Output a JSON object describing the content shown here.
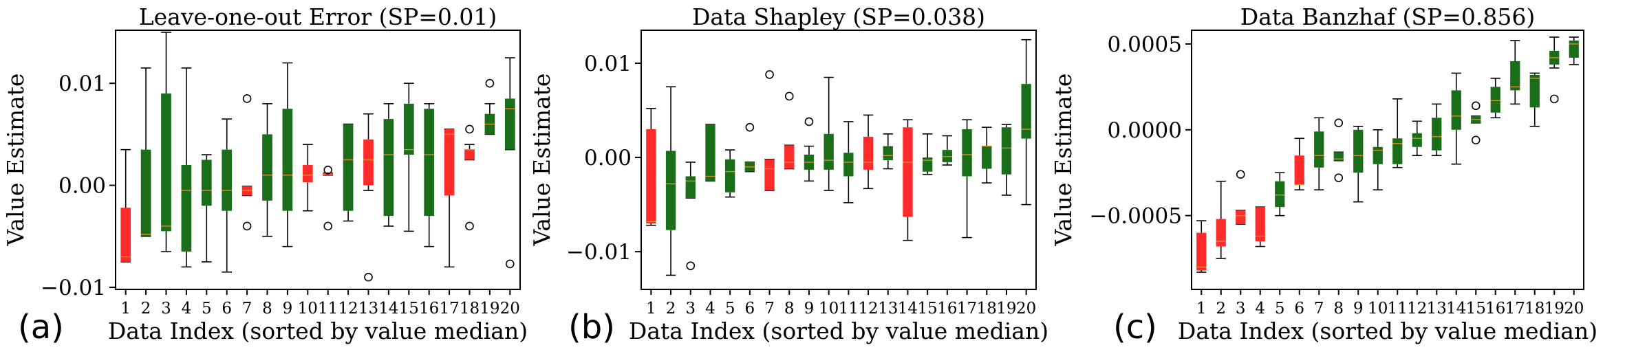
{
  "figure": {
    "panel_letters": [
      "(a)",
      "(b)",
      "(c)"
    ]
  },
  "colors": {
    "positive_box": "#1a6e1a",
    "negative_box": "#ff2a2a",
    "median_line": "#d98c2b",
    "whisker": "#000000",
    "outlier_edge": "#000000"
  },
  "chart_data": [
    {
      "type": "box",
      "title": "Leave-one-out Error (SP=0.01)",
      "xlabel": "Data Index (sorted by value median)",
      "ylabel": "Value Estimate",
      "categories": [
        "1",
        "2",
        "3",
        "4",
        "5",
        "6",
        "7",
        "8",
        "9",
        "10",
        "11",
        "12",
        "13",
        "14",
        "15",
        "16",
        "17",
        "18",
        "19",
        "20"
      ],
      "ylim": [
        -0.0102,
        0.0152
      ],
      "yticks": [
        -0.01,
        0.0,
        0.01
      ],
      "ytick_labels": [
        "−0.01",
        "0.00",
        "0.01"
      ],
      "grid": false,
      "boxes": [
        {
          "min": -0.0075,
          "q1": -0.0075,
          "median": -0.007,
          "q3": -0.0022,
          "max": 0.0035,
          "color": "red",
          "outliers": []
        },
        {
          "min": -0.005,
          "q1": -0.005,
          "median": -0.0048,
          "q3": 0.0035,
          "max": 0.0115,
          "color": "green",
          "outliers": []
        },
        {
          "min": -0.0065,
          "q1": -0.0045,
          "median": -0.004,
          "q3": 0.009,
          "max": 0.015,
          "color": "green",
          "outliers": []
        },
        {
          "min": -0.008,
          "q1": -0.0065,
          "median": -0.0005,
          "q3": 0.002,
          "max": 0.0115,
          "color": "green",
          "outliers": []
        },
        {
          "min": -0.0075,
          "q1": -0.002,
          "median": -0.0005,
          "q3": 0.0025,
          "max": 0.003,
          "color": "green",
          "outliers": []
        },
        {
          "min": -0.0085,
          "q1": -0.0025,
          "median": -0.0005,
          "q3": 0.0035,
          "max": 0.0065,
          "color": "green",
          "outliers": []
        },
        {
          "min": -0.001,
          "q1": -0.001,
          "median": -0.0005,
          "q3": -0.0001,
          "max": -0.0001,
          "color": "red",
          "outliers": [
            0.0085,
            -0.004
          ]
        },
        {
          "min": -0.005,
          "q1": -0.0015,
          "median": 0.001,
          "q3": 0.005,
          "max": 0.008,
          "color": "green",
          "outliers": []
        },
        {
          "min": -0.006,
          "q1": -0.0025,
          "median": 0.001,
          "q3": 0.0075,
          "max": 0.012,
          "color": "green",
          "outliers": []
        },
        {
          "min": -0.0025,
          "q1": 0.0003,
          "median": 0.001,
          "q3": 0.002,
          "max": 0.004,
          "color": "red",
          "outliers": []
        },
        {
          "min": 0.001,
          "q1": 0.001,
          "median": 0.0011,
          "q3": 0.0012,
          "max": 0.0012,
          "color": "red",
          "outliers": [
            0.0015,
            -0.004
          ]
        },
        {
          "min": -0.0035,
          "q1": -0.0025,
          "median": 0.0025,
          "q3": 0.006,
          "max": 0.006,
          "color": "green",
          "outliers": []
        },
        {
          "min": -0.0005,
          "q1": 0.0,
          "median": 0.0025,
          "q3": 0.0045,
          "max": 0.007,
          "color": "red",
          "outliers": [
            -0.009
          ]
        },
        {
          "min": -0.004,
          "q1": -0.003,
          "median": 0.003,
          "q3": 0.0065,
          "max": 0.008,
          "color": "green",
          "outliers": []
        },
        {
          "min": -0.0045,
          "q1": 0.003,
          "median": 0.0035,
          "q3": 0.008,
          "max": 0.01,
          "color": "green",
          "outliers": []
        },
        {
          "min": -0.006,
          "q1": -0.003,
          "median": 0.003,
          "q3": 0.0075,
          "max": 0.008,
          "color": "green",
          "outliers": []
        },
        {
          "min": -0.008,
          "q1": -0.001,
          "median": 0.005,
          "q3": 0.0055,
          "max": 0.0055,
          "color": "red",
          "outliers": []
        },
        {
          "min": 0.0025,
          "q1": 0.0025,
          "median": 0.0035,
          "q3": 0.0035,
          "max": 0.004,
          "color": "red",
          "outliers": [
            0.0055,
            -0.004
          ]
        },
        {
          "min": 0.005,
          "q1": 0.005,
          "median": 0.006,
          "q3": 0.007,
          "max": 0.008,
          "color": "green",
          "outliers": [
            0.01
          ]
        },
        {
          "min": 0.0035,
          "q1": 0.0035,
          "median": 0.0075,
          "q3": 0.0085,
          "max": 0.0125,
          "color": "green",
          "outliers": [
            -0.0077
          ]
        }
      ]
    },
    {
      "type": "box",
      "title": "Data Shapley (SP=0.038)",
      "xlabel": "Data Index (sorted by value median)",
      "ylabel": "Value Estimate",
      "categories": [
        "1",
        "2",
        "3",
        "4",
        "5",
        "6",
        "7",
        "8",
        "9",
        "10",
        "11",
        "12",
        "13",
        "14",
        "15",
        "16",
        "17",
        "18",
        "19",
        "20"
      ],
      "ylim": [
        -0.014,
        0.0135
      ],
      "yticks": [
        -0.01,
        0.0,
        0.01
      ],
      "ytick_labels": [
        "−0.01",
        "0.00",
        "0.01"
      ],
      "grid": false,
      "boxes": [
        {
          "min": -0.0072,
          "q1": -0.007,
          "median": -0.0068,
          "q3": 0.003,
          "max": 0.0052,
          "color": "red",
          "outliers": []
        },
        {
          "min": -0.0125,
          "q1": -0.0077,
          "median": -0.0028,
          "q3": 0.0007,
          "max": 0.0075,
          "color": "green",
          "outliers": []
        },
        {
          "min": -0.0043,
          "q1": -0.0043,
          "median": -0.0025,
          "q3": -0.002,
          "max": -0.0005,
          "color": "green",
          "outliers": [
            -0.0115
          ]
        },
        {
          "min": -0.0025,
          "q1": -0.0025,
          "median": -0.002,
          "q3": 0.0035,
          "max": 0.0035,
          "color": "green",
          "outliers": []
        },
        {
          "min": -0.0042,
          "q1": -0.0037,
          "median": -0.0015,
          "q3": -0.0002,
          "max": 0.0008,
          "color": "green",
          "outliers": []
        },
        {
          "min": -0.0015,
          "q1": -0.0015,
          "median": -0.001,
          "q3": -0.0005,
          "max": -0.0005,
          "color": "green",
          "outliers": [
            0.0032
          ]
        },
        {
          "min": -0.0035,
          "q1": -0.0035,
          "median": -0.0012,
          "q3": -0.0002,
          "max": -0.0002,
          "color": "red",
          "outliers": [
            0.0088
          ]
        },
        {
          "min": -0.0012,
          "q1": -0.0012,
          "median": -0.0005,
          "q3": 0.0013,
          "max": 0.0013,
          "color": "red",
          "outliers": [
            0.0065
          ]
        },
        {
          "min": -0.0025,
          "q1": -0.0013,
          "median": -0.0005,
          "q3": 0.0003,
          "max": 0.0012,
          "color": "green",
          "outliers": [
            0.0038
          ]
        },
        {
          "min": -0.0035,
          "q1": -0.0013,
          "median": -0.0003,
          "q3": 0.0025,
          "max": 0.0085,
          "color": "green",
          "outliers": []
        },
        {
          "min": -0.0048,
          "q1": -0.002,
          "median": -0.0005,
          "q3": 0.0005,
          "max": 0.0038,
          "color": "green",
          "outliers": []
        },
        {
          "min": -0.0033,
          "q1": -0.0013,
          "median": -0.0005,
          "q3": 0.0022,
          "max": 0.0045,
          "color": "red",
          "outliers": []
        },
        {
          "min": -0.0012,
          "q1": -0.0003,
          "median": 0.0002,
          "q3": 0.0012,
          "max": 0.0025,
          "color": "green",
          "outliers": []
        },
        {
          "min": -0.0088,
          "q1": -0.0063,
          "median": -0.0005,
          "q3": 0.0032,
          "max": 0.004,
          "color": "red",
          "outliers": []
        },
        {
          "min": -0.0018,
          "q1": -0.0015,
          "median": -0.0003,
          "q3": 0.0,
          "max": 0.0025,
          "color": "green",
          "outliers": []
        },
        {
          "min": -0.0008,
          "q1": -0.0005,
          "median": 0.0001,
          "q3": 0.0008,
          "max": 0.0023,
          "color": "green",
          "outliers": []
        },
        {
          "min": -0.0085,
          "q1": -0.002,
          "median": 0.0003,
          "q3": 0.003,
          "max": 0.004,
          "color": "green",
          "outliers": []
        },
        {
          "min": -0.0027,
          "q1": -0.0012,
          "median": 0.0012,
          "q3": 0.0012,
          "max": 0.0032,
          "color": "green",
          "outliers": []
        },
        {
          "min": -0.004,
          "q1": -0.0018,
          "median": 0.001,
          "q3": 0.0032,
          "max": 0.0035,
          "color": "green",
          "outliers": []
        },
        {
          "min": -0.005,
          "q1": 0.002,
          "median": 0.003,
          "q3": 0.0078,
          "max": 0.0125,
          "color": "green",
          "outliers": []
        }
      ]
    },
    {
      "type": "box",
      "title": "Data Banzhaf (SP=0.856)",
      "xlabel": "Data Index (sorted by value median)",
      "ylabel": "Value Estimate",
      "categories": [
        "1",
        "2",
        "3",
        "4",
        "5",
        "6",
        "7",
        "8",
        "9",
        "10",
        "11",
        "12",
        "13",
        "14",
        "15",
        "16",
        "17",
        "18",
        "19",
        "20"
      ],
      "ylim": [
        -0.00093,
        0.00058
      ],
      "yticks": [
        -0.0005,
        0.0,
        0.0005
      ],
      "ytick_labels": [
        "−0.0005",
        "0.0000",
        "0.0005"
      ],
      "grid": false,
      "boxes": [
        {
          "min": -0.00083,
          "q1": -0.00082,
          "median": -0.0008,
          "q3": -0.0006,
          "max": -0.00053,
          "color": "red",
          "outliers": []
        },
        {
          "min": -0.00075,
          "q1": -0.00068,
          "median": -0.00065,
          "q3": -0.00052,
          "max": -0.0003,
          "color": "red",
          "outliers": []
        },
        {
          "min": -0.00055,
          "q1": -0.00055,
          "median": -0.0005,
          "q3": -0.00047,
          "max": -0.00047,
          "color": "red",
          "outliers": [
            -0.00026
          ]
        },
        {
          "min": -0.00068,
          "q1": -0.00065,
          "median": -0.00062,
          "q3": -0.00045,
          "max": -0.00045,
          "color": "red",
          "outliers": []
        },
        {
          "min": -0.0005,
          "q1": -0.00045,
          "median": -0.00038,
          "q3": -0.0003,
          "max": -0.00025,
          "color": "green",
          "outliers": []
        },
        {
          "min": -0.00035,
          "q1": -0.00032,
          "median": -0.00032,
          "q3": -0.00015,
          "max": -5e-05,
          "color": "red",
          "outliers": []
        },
        {
          "min": -0.00035,
          "q1": -0.00022,
          "median": -0.00015,
          "q3": -1e-05,
          "max": 7e-05,
          "color": "green",
          "outliers": []
        },
        {
          "min": -0.00018,
          "q1": -0.00018,
          "median": -0.00017,
          "q3": -0.00013,
          "max": -0.00013,
          "color": "green",
          "outliers": [
            4e-05,
            -0.00028
          ]
        },
        {
          "min": -0.00042,
          "q1": -0.00025,
          "median": -0.00015,
          "q3": 0.0,
          "max": 2e-05,
          "color": "green",
          "outliers": []
        },
        {
          "min": -0.00035,
          "q1": -0.0002,
          "median": -0.00012,
          "q3": -0.0001,
          "max": 0.0,
          "color": "green",
          "outliers": []
        },
        {
          "min": -0.00022,
          "q1": -0.0002,
          "median": -8e-05,
          "q3": -5e-05,
          "max": 0.00018,
          "color": "green",
          "outliers": []
        },
        {
          "min": -0.00015,
          "q1": -0.0001,
          "median": -5e-05,
          "q3": -2e-05,
          "max": 5e-05,
          "color": "green",
          "outliers": []
        },
        {
          "min": -0.00015,
          "q1": -0.00012,
          "median": -4e-05,
          "q3": 7e-05,
          "max": 0.00015,
          "color": "green",
          "outliers": []
        },
        {
          "min": -0.0002,
          "q1": 0.0,
          "median": 8e-05,
          "q3": 0.00023,
          "max": 0.00033,
          "color": "green",
          "outliers": []
        },
        {
          "min": 4e-05,
          "q1": 4e-05,
          "median": 6e-05,
          "q3": 8e-05,
          "max": 8e-05,
          "color": "green",
          "outliers": [
            0.00014,
            -6e-05
          ]
        },
        {
          "min": 7e-05,
          "q1": 0.0001,
          "median": 0.00017,
          "q3": 0.00025,
          "max": 0.0003,
          "color": "green",
          "outliers": []
        },
        {
          "min": 0.00015,
          "q1": 0.00023,
          "median": 0.00025,
          "q3": 0.0004,
          "max": 0.00052,
          "color": "green",
          "outliers": []
        },
        {
          "min": 2e-05,
          "q1": 0.00013,
          "median": 0.0003,
          "q3": 0.00032,
          "max": 0.00033,
          "color": "green",
          "outliers": []
        },
        {
          "min": 0.00036,
          "q1": 0.00038,
          "median": 0.00042,
          "q3": 0.00046,
          "max": 0.00054,
          "color": "green",
          "outliers": [
            0.00018
          ]
        },
        {
          "min": 0.00038,
          "q1": 0.00042,
          "median": 0.0005,
          "q3": 0.00052,
          "max": 0.00054,
          "color": "green",
          "outliers": []
        }
      ]
    }
  ]
}
